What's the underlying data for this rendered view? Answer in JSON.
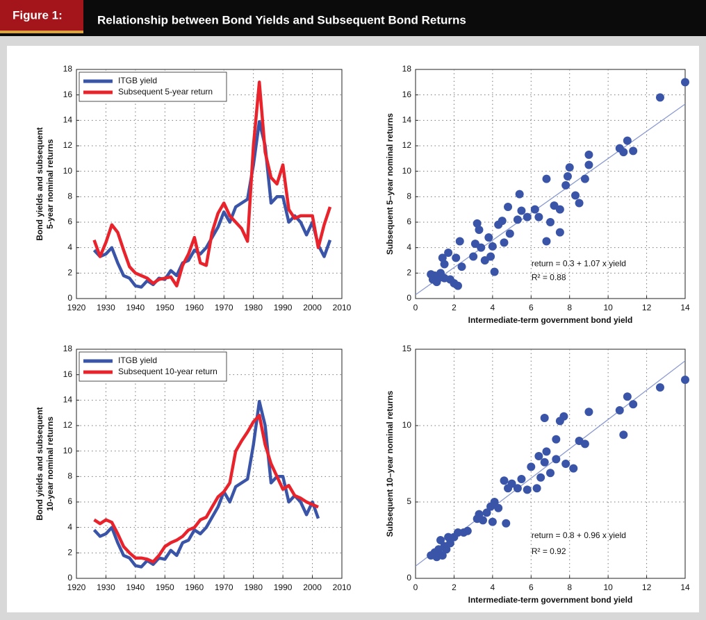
{
  "header": {
    "figure_label": "Figure 1:",
    "title": "Relationship between Bond Yields and Subsequent Bond Returns"
  },
  "chart_data": [
    {
      "type": "line",
      "ylabel": [
        "Bond yields and subsequent",
        "5-year nominal returns"
      ],
      "x": [
        1926,
        1928,
        1930,
        1932,
        1934,
        1936,
        1938,
        1940,
        1942,
        1944,
        1946,
        1948,
        1950,
        1952,
        1954,
        1956,
        1958,
        1960,
        1962,
        1964,
        1966,
        1968,
        1970,
        1972,
        1974,
        1976,
        1978,
        1980,
        1982,
        1984,
        1986,
        1988,
        1990,
        1992,
        1994,
        1996,
        1998,
        2000,
        2002,
        2004,
        2006
      ],
      "series": [
        {
          "name": "ITGB yield",
          "color": "#3a55a8",
          "values": [
            3.8,
            3.3,
            3.5,
            4.0,
            2.8,
            1.8,
            1.6,
            1.0,
            0.9,
            1.4,
            1.1,
            1.6,
            1.5,
            2.2,
            1.8,
            2.8,
            3.0,
            3.8,
            3.5,
            4.0,
            4.8,
            5.6,
            6.8,
            6.0,
            7.2,
            7.5,
            7.8,
            10.5,
            13.9,
            12.0,
            7.5,
            8.0,
            8.0,
            6.0,
            6.5,
            6.0,
            5.0,
            6.0,
            4.2,
            3.3,
            4.6
          ]
        },
        {
          "name": "Subsequent 5-year return",
          "color": "#e8232b",
          "values": [
            4.6,
            3.3,
            4.4,
            5.8,
            5.2,
            3.8,
            2.5,
            2.0,
            1.8,
            1.6,
            1.2,
            1.5,
            1.6,
            1.7,
            1.0,
            2.6,
            3.5,
            4.8,
            2.8,
            2.6,
            5.2,
            6.7,
            7.5,
            6.5,
            6.0,
            5.5,
            4.5,
            12.0,
            17.0,
            11.5,
            9.5,
            9.0,
            10.5,
            7.0,
            6.3,
            6.5,
            6.5,
            6.5,
            4.0,
            5.8,
            7.2
          ]
        }
      ],
      "xlim": [
        1920,
        2010
      ],
      "xticks": [
        1920,
        1930,
        1940,
        1950,
        1960,
        1970,
        1980,
        1990,
        2000,
        2010
      ],
      "ylim": [
        0,
        18
      ],
      "yticks": [
        0,
        2,
        4,
        6,
        8,
        10,
        12,
        14,
        16,
        18
      ],
      "grid": true,
      "legend": "upper left"
    },
    {
      "type": "scatter",
      "xlabel": "Intermediate-term government bond yield",
      "ylabel": "Subsequent 5–year nominal returns",
      "x": [
        0.8,
        0.9,
        1.0,
        1.1,
        1.2,
        1.3,
        1.4,
        1.5,
        1.5,
        1.7,
        1.8,
        2.0,
        2.1,
        2.2,
        2.3,
        2.4,
        3.0,
        3.1,
        3.2,
        3.3,
        3.4,
        3.6,
        3.8,
        3.9,
        4.0,
        4.1,
        4.3,
        4.5,
        4.6,
        4.8,
        4.9,
        5.3,
        5.4,
        5.5,
        5.8,
        6.2,
        6.4,
        6.8,
        6.8,
        7.0,
        7.2,
        7.5,
        7.5,
        7.8,
        7.9,
        8.0,
        8.3,
        8.5,
        8.8,
        9.0,
        9.0,
        10.6,
        10.8,
        11.0,
        11.3,
        12.7,
        14.0
      ],
      "values": [
        1.9,
        1.5,
        1.8,
        1.3,
        1.6,
        2.0,
        3.2,
        1.6,
        2.7,
        3.6,
        1.5,
        1.2,
        3.2,
        1.0,
        4.5,
        2.5,
        3.3,
        4.3,
        5.9,
        5.4,
        4.0,
        3.0,
        4.8,
        3.3,
        4.1,
        2.1,
        5.8,
        6.1,
        4.4,
        7.2,
        5.1,
        6.2,
        8.2,
        6.9,
        6.4,
        7.0,
        6.4,
        9.4,
        4.5,
        6.0,
        7.3,
        5.2,
        7.0,
        8.9,
        9.6,
        10.3,
        8.1,
        7.5,
        9.4,
        10.5,
        11.3,
        11.8,
        11.5,
        12.4,
        11.6,
        15.8,
        17.0
      ],
      "color": "#3a55a8",
      "trendline": {
        "intercept": 0.3,
        "slope": 1.07,
        "color": "#8a9ad0"
      },
      "annotations": [
        "return = 0.3 + 1.07 x yield",
        "R² = 0.88"
      ],
      "xlim": [
        0,
        14
      ],
      "xticks": [
        0,
        2,
        4,
        6,
        8,
        10,
        12,
        14
      ],
      "ylim": [
        0,
        18
      ],
      "yticks": [
        0,
        2,
        4,
        6,
        8,
        10,
        12,
        14,
        16,
        18
      ],
      "grid": true
    },
    {
      "type": "line",
      "ylabel": [
        "Bond yields and subsequent",
        "10-year nominal returns"
      ],
      "x": [
        1926,
        1928,
        1930,
        1932,
        1934,
        1936,
        1938,
        1940,
        1942,
        1944,
        1946,
        1948,
        1950,
        1952,
        1954,
        1956,
        1958,
        1960,
        1962,
        1964,
        1966,
        1968,
        1970,
        1972,
        1974,
        1976,
        1978,
        1980,
        1982,
        1984,
        1986,
        1988,
        1990,
        1992,
        1994,
        1996,
        1998,
        2000,
        2002
      ],
      "series": [
        {
          "name": "ITGB yield",
          "color": "#3a55a8",
          "values": [
            3.8,
            3.3,
            3.5,
            4.0,
            2.8,
            1.8,
            1.6,
            1.0,
            0.9,
            1.4,
            1.1,
            1.6,
            1.5,
            2.2,
            1.8,
            2.8,
            3.0,
            3.8,
            3.5,
            4.0,
            4.8,
            5.6,
            6.8,
            6.0,
            7.2,
            7.5,
            7.8,
            10.5,
            13.9,
            12.0,
            7.5,
            8.0,
            8.0,
            6.0,
            6.5,
            6.0,
            5.0,
            6.0,
            4.7
          ]
        },
        {
          "name": "Subsequent 10-year return",
          "color": "#e8232b",
          "values": [
            4.6,
            4.3,
            4.6,
            4.4,
            3.5,
            2.5,
            2.0,
            1.6,
            1.6,
            1.5,
            1.3,
            1.8,
            2.5,
            2.8,
            3.0,
            3.3,
            3.8,
            4.0,
            4.6,
            4.8,
            5.6,
            6.4,
            6.8,
            7.5,
            10.0,
            10.8,
            11.5,
            12.3,
            12.8,
            10.5,
            9.0,
            8.0,
            7.0,
            7.3,
            6.5,
            6.3,
            6.0,
            5.8,
            5.6
          ]
        }
      ],
      "xlim": [
        1920,
        2010
      ],
      "xticks": [
        1920,
        1930,
        1940,
        1950,
        1960,
        1970,
        1980,
        1990,
        2000,
        2010
      ],
      "ylim": [
        0,
        18
      ],
      "yticks": [
        0,
        2,
        4,
        6,
        8,
        10,
        12,
        14,
        16,
        18
      ],
      "grid": true,
      "legend": "upper left"
    },
    {
      "type": "scatter",
      "xlabel": "Intermediate-term government bond yield",
      "ylabel": "Subsequent 10–year nominal returns",
      "x": [
        0.8,
        1.0,
        1.1,
        1.2,
        1.3,
        1.4,
        1.5,
        1.6,
        1.7,
        1.8,
        2.0,
        2.2,
        2.5,
        2.7,
        3.2,
        3.3,
        3.5,
        3.7,
        3.9,
        4.0,
        4.1,
        4.3,
        4.6,
        4.7,
        4.8,
        5.0,
        5.3,
        5.5,
        5.8,
        6.0,
        6.3,
        6.4,
        6.5,
        6.7,
        6.7,
        6.8,
        7.0,
        7.3,
        7.3,
        7.5,
        7.7,
        7.8,
        8.2,
        8.5,
        8.8,
        9.0,
        10.6,
        10.8,
        11.0,
        11.3,
        12.7,
        14.0
      ],
      "values": [
        1.5,
        1.7,
        1.4,
        1.9,
        2.5,
        1.5,
        2.1,
        1.9,
        2.7,
        2.3,
        2.7,
        3.0,
        3.0,
        3.1,
        3.9,
        4.2,
        3.8,
        4.3,
        4.7,
        3.7,
        5.0,
        4.6,
        6.4,
        3.6,
        5.9,
        6.2,
        5.9,
        6.5,
        5.8,
        7.3,
        5.9,
        8.0,
        6.6,
        7.6,
        10.5,
        8.3,
        6.9,
        7.8,
        9.1,
        10.3,
        10.6,
        7.5,
        7.2,
        9.0,
        8.8,
        10.9,
        11.0,
        9.4,
        11.9,
        11.4,
        12.5,
        13.0
      ],
      "color": "#3a55a8",
      "trendline": {
        "intercept": 0.8,
        "slope": 0.96,
        "color": "#8a9ad0"
      },
      "annotations": [
        "return = 0.8 + 0.96 x yield",
        "R² = 0.92"
      ],
      "xlim": [
        0,
        14
      ],
      "xticks": [
        0,
        2,
        4,
        6,
        8,
        10,
        12,
        14
      ],
      "ylim": [
        0,
        15
      ],
      "yticks": [
        0,
        5,
        10,
        15
      ],
      "grid": true
    }
  ]
}
